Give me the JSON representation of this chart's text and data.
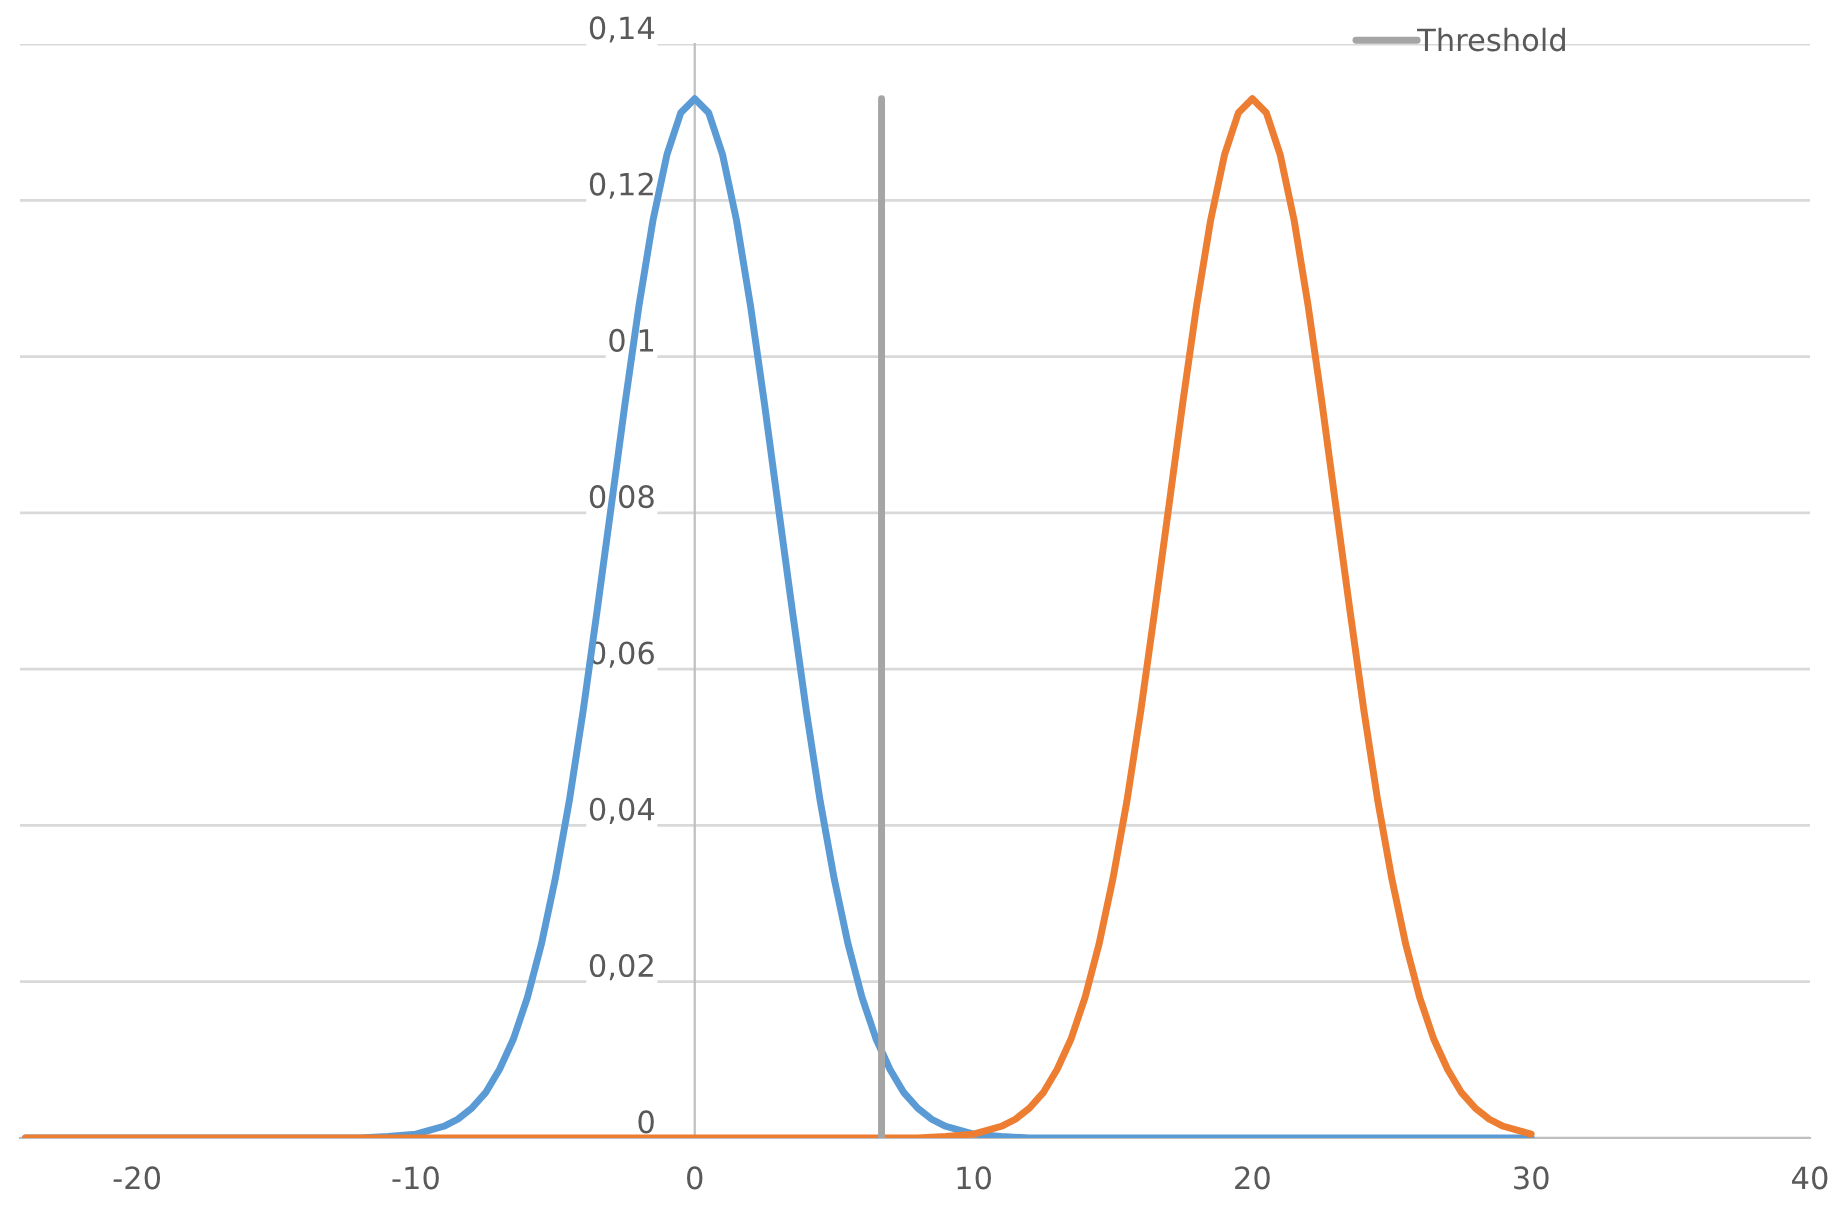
{
  "chart_data": {
    "type": "line",
    "xlim": [
      -24.2,
      40
    ],
    "xticks": [
      -20,
      -10,
      0,
      10,
      20,
      30,
      40
    ],
    "ylim": [
      0,
      0.14
    ],
    "yticks": [
      0,
      {
        "value": 0.02,
        "label": "0,02"
      },
      {
        "value": 0.04,
        "label": "0,04"
      },
      {
        "value": 0.06,
        "label": "0,06"
      },
      {
        "value": 0.08,
        "label": "0,08"
      },
      {
        "value": 0.1,
        "label": "0,1"
      },
      {
        "value": 0.12,
        "label": "0,12"
      },
      {
        "value": 0.14,
        "label": "0,14"
      }
    ],
    "grid": "y",
    "legend": "top right",
    "series": [
      {
        "color": "#5b9bd5",
        "x": [
          -24,
          -14,
          -12,
          -11,
          -10,
          -9,
          -8.5,
          -8,
          -7.5,
          -7,
          -6.5,
          -6,
          -5.5,
          -5,
          -4.5,
          -4,
          -3.5,
          -3,
          -2.5,
          -2,
          -1.5,
          -1,
          -0.5,
          0,
          0.5,
          1,
          1.5,
          2,
          2.5,
          3,
          3.5,
          4,
          4.5,
          5,
          5.5,
          6,
          6.5,
          7,
          7.5,
          8,
          8.5,
          9,
          10,
          11,
          12,
          14,
          30
        ],
        "values": [
          0,
          0,
          0,
          0.0002,
          0.0005,
          0.0015,
          0.0024,
          0.0038,
          0.0058,
          0.0088,
          0.0127,
          0.018,
          0.0248,
          0.0332,
          0.0431,
          0.0547,
          0.0675,
          0.0807,
          0.094,
          0.1065,
          0.1174,
          0.1258,
          0.1312,
          0.133,
          0.1312,
          0.1258,
          0.1174,
          0.1065,
          0.094,
          0.0807,
          0.0675,
          0.0547,
          0.0431,
          0.0332,
          0.0248,
          0.018,
          0.0127,
          0.0088,
          0.0058,
          0.0038,
          0.0024,
          0.0015,
          0.0005,
          0.0002,
          0,
          0,
          0
        ]
      },
      {
        "color": "#ed7d31",
        "x": [
          -24,
          6,
          8,
          9,
          10,
          11,
          11.5,
          12,
          12.5,
          13,
          13.5,
          14,
          14.5,
          15,
          15.5,
          16,
          16.5,
          17,
          17.5,
          18,
          18.5,
          19,
          19.5,
          20,
          20.5,
          21,
          21.5,
          22,
          22.5,
          23,
          23.5,
          24,
          24.5,
          25,
          25.5,
          26,
          26.5,
          27,
          27.5,
          28,
          28.5,
          29,
          30
        ],
        "values": [
          0,
          0,
          0,
          0.0002,
          0.0005,
          0.0015,
          0.0024,
          0.0038,
          0.0058,
          0.0088,
          0.0127,
          0.018,
          0.0248,
          0.0332,
          0.0431,
          0.0547,
          0.0675,
          0.0807,
          0.094,
          0.1065,
          0.1174,
          0.1258,
          0.1312,
          0.133,
          0.1312,
          0.1258,
          0.1174,
          0.1065,
          0.094,
          0.0807,
          0.0675,
          0.0547,
          0.0431,
          0.0332,
          0.0248,
          0.018,
          0.0127,
          0.0088,
          0.0058,
          0.0038,
          0.0024,
          0.0015,
          0.0005
        ]
      },
      {
        "name": "Threshold",
        "color": "#a5a5a5",
        "x": [
          6.7,
          6.7
        ],
        "values": [
          0,
          0.133
        ]
      }
    ]
  }
}
